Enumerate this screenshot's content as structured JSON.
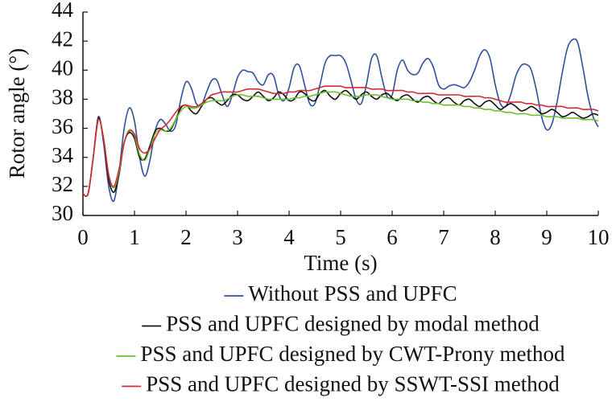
{
  "chart_data": {
    "type": "line",
    "x_label": "Time (s)",
    "y_label": "Rotor angle (°)",
    "x": [
      0,
      0.1,
      0.2,
      0.3,
      0.4,
      0.5,
      0.6,
      0.7,
      0.8,
      0.9,
      1,
      1.1,
      1.2,
      1.3,
      1.4,
      1.5,
      1.6,
      1.7,
      1.8,
      1.9,
      2,
      2.1,
      2.2,
      2.3,
      2.4,
      2.5,
      2.6,
      2.7,
      2.8,
      2.9,
      3,
      3.1,
      3.2,
      3.3,
      3.4,
      3.5,
      3.6,
      3.7,
      3.8,
      3.9,
      4,
      4.1,
      4.2,
      4.3,
      4.4,
      4.5,
      4.6,
      4.7,
      4.8,
      4.9,
      5,
      5.1,
      5.2,
      5.3,
      5.4,
      5.5,
      5.6,
      5.7,
      5.8,
      5.9,
      6,
      6.1,
      6.2,
      6.3,
      6.4,
      6.5,
      6.6,
      6.7,
      6.8,
      6.9,
      7,
      7.1,
      7.2,
      7.3,
      7.4,
      7.5,
      7.6,
      7.7,
      7.8,
      7.9,
      8,
      8.1,
      8.2,
      8.3,
      8.4,
      8.5,
      8.6,
      8.7,
      8.8,
      8.9,
      9,
      9.1,
      9.2,
      9.3,
      9.4,
      9.5,
      9.6,
      9.7,
      9.8,
      9.9,
      10
    ],
    "series": [
      {
        "name": "Without PSS and UPFC",
        "color": "#2f4f9a",
        "values": [
          31.5,
          31.5,
          34,
          36.8,
          35,
          32,
          31.0,
          33,
          36,
          37.4,
          36.5,
          34,
          32.7,
          33.8,
          35.8,
          36.6,
          36.3,
          35.8,
          36.2,
          38,
          39.2,
          38.8,
          37.7,
          37.6,
          38.5,
          39.3,
          39.3,
          38.3,
          37.5,
          38.3,
          39.5,
          40.0,
          39.9,
          39.8,
          39.2,
          39.0,
          39.7,
          39.6,
          38.3,
          37.9,
          38.8,
          40.2,
          40.3,
          39.0,
          37.7,
          37.7,
          39.0,
          40.5,
          41.0,
          41.0,
          41.0,
          40.5,
          39.3,
          38.0,
          37.7,
          39.0,
          40.8,
          41.0,
          39.5,
          38.2,
          38.3,
          40.0,
          40.7,
          40.0,
          39.7,
          39.8,
          40.5,
          40.8,
          40.2,
          39.0,
          38.7,
          38.9,
          39.0,
          38.9,
          38.8,
          39.2,
          40.0,
          41.0,
          41.4,
          40.8,
          39.0,
          37.7,
          37.5,
          38.3,
          39.6,
          40.3,
          40.4,
          40.0,
          38.6,
          36.8,
          35.9,
          36.3,
          37.8,
          39.8,
          41.5,
          42.1,
          41.9,
          40.2,
          38.2,
          36.8,
          36.1
        ]
      },
      {
        "name": "PSS and UPFC designed by modal method",
        "color": "#111111",
        "values": [
          31.5,
          31.5,
          34,
          36.7,
          35.2,
          32.5,
          31.6,
          32.8,
          35,
          35.7,
          35.3,
          34.0,
          33.9,
          34.8,
          35.8,
          36.0,
          35.8,
          35.9,
          36.6,
          37.4,
          37.6,
          37.2,
          37.0,
          37.5,
          38.0,
          38.1,
          37.8,
          37.6,
          37.9,
          38.3,
          38.3,
          38.0,
          37.9,
          38.2,
          38.5,
          38.2,
          37.9,
          38.1,
          38.5,
          38.3,
          37.9,
          38.0,
          38.5,
          38.4,
          38.0,
          37.9,
          38.4,
          38.6,
          38.2,
          38.0,
          38.4,
          38.6,
          38.3,
          38.0,
          38.3,
          38.5,
          38.2,
          38.0,
          38.3,
          38.4,
          38.1,
          37.9,
          38.2,
          38.3,
          38.0,
          37.8,
          38.1,
          38.2,
          37.9,
          37.7,
          38.0,
          38.1,
          37.8,
          37.6,
          37.9,
          38.0,
          37.7,
          37.5,
          37.8,
          37.9,
          37.6,
          37.3,
          37.5,
          37.7,
          37.5,
          37.2,
          37.3,
          37.5,
          37.3,
          37.0,
          37.1,
          37.3,
          37.1,
          36.8,
          36.9,
          37.1,
          36.9,
          36.7,
          36.8,
          37.0,
          36.9
        ]
      },
      {
        "name": "PSS and UPFC designed by CWT-Prony method",
        "color": "#6abf2e",
        "values": [
          31.5,
          31.5,
          34,
          36.6,
          35.3,
          32.8,
          31.9,
          33,
          35,
          35.9,
          35.5,
          34.2,
          33.8,
          34.6,
          35.6,
          35.9,
          35.8,
          36.0,
          36.6,
          37.2,
          37.5,
          37.4,
          37.4,
          37.6,
          37.8,
          37.9,
          37.9,
          37.9,
          38.0,
          38.2,
          38.3,
          38.3,
          38.2,
          38.2,
          38.2,
          38.1,
          38.0,
          38.0,
          38.0,
          38.0,
          38.0,
          38.1,
          38.1,
          38.2,
          38.2,
          38.3,
          38.4,
          38.5,
          38.5,
          38.5,
          38.4,
          38.3,
          38.2,
          38.2,
          38.2,
          38.3,
          38.3,
          38.3,
          38.2,
          38.1,
          38.0,
          38.0,
          38.0,
          38.0,
          37.9,
          37.9,
          37.8,
          37.8,
          37.7,
          37.7,
          37.6,
          37.6,
          37.6,
          37.6,
          37.5,
          37.5,
          37.4,
          37.4,
          37.3,
          37.3,
          37.2,
          37.2,
          37.1,
          37.1,
          37.0,
          37.0,
          37.0,
          36.9,
          36.9,
          36.9,
          36.8,
          36.8,
          36.8,
          36.7,
          36.7,
          36.7,
          36.7,
          36.6,
          36.6,
          36.6,
          36.5
        ]
      },
      {
        "name": "PSS and UPFC designed by SSWT-SSI method",
        "color": "#d42a36",
        "values": [
          31.5,
          31.5,
          34,
          36.6,
          35.3,
          32.8,
          32.0,
          33.2,
          35,
          35.8,
          35.6,
          34.6,
          34.3,
          34.6,
          35.3,
          35.9,
          36.2,
          36.6,
          37.1,
          37.5,
          37.6,
          37.5,
          37.5,
          37.7,
          38.0,
          38.3,
          38.4,
          38.5,
          38.5,
          38.5,
          38.5,
          38.6,
          38.7,
          38.7,
          38.7,
          38.6,
          38.5,
          38.4,
          38.4,
          38.4,
          38.5,
          38.5,
          38.6,
          38.6,
          38.6,
          38.7,
          38.8,
          38.9,
          38.9,
          38.9,
          38.9,
          38.8,
          38.8,
          38.8,
          38.8,
          38.8,
          38.7,
          38.7,
          38.7,
          38.6,
          38.6,
          38.6,
          38.6,
          38.5,
          38.5,
          38.4,
          38.4,
          38.4,
          38.4,
          38.3,
          38.3,
          38.3,
          38.3,
          38.3,
          38.2,
          38.2,
          38.2,
          38.2,
          38.1,
          38.1,
          38.0,
          37.9,
          37.8,
          37.8,
          37.8,
          37.8,
          37.7,
          37.7,
          37.6,
          37.6,
          37.5,
          37.5,
          37.5,
          37.5,
          37.4,
          37.4,
          37.4,
          37.3,
          37.3,
          37.3,
          37.2
        ]
      }
    ],
    "xlim": [
      0,
      10
    ],
    "xticks": [
      0,
      1,
      2,
      3,
      4,
      5,
      6,
      7,
      8,
      9,
      10
    ],
    "ylim": [
      30,
      44
    ],
    "yticks": [
      30,
      32,
      34,
      36,
      38,
      40,
      42,
      44
    ],
    "grid": false,
    "legend": "bottom"
  }
}
